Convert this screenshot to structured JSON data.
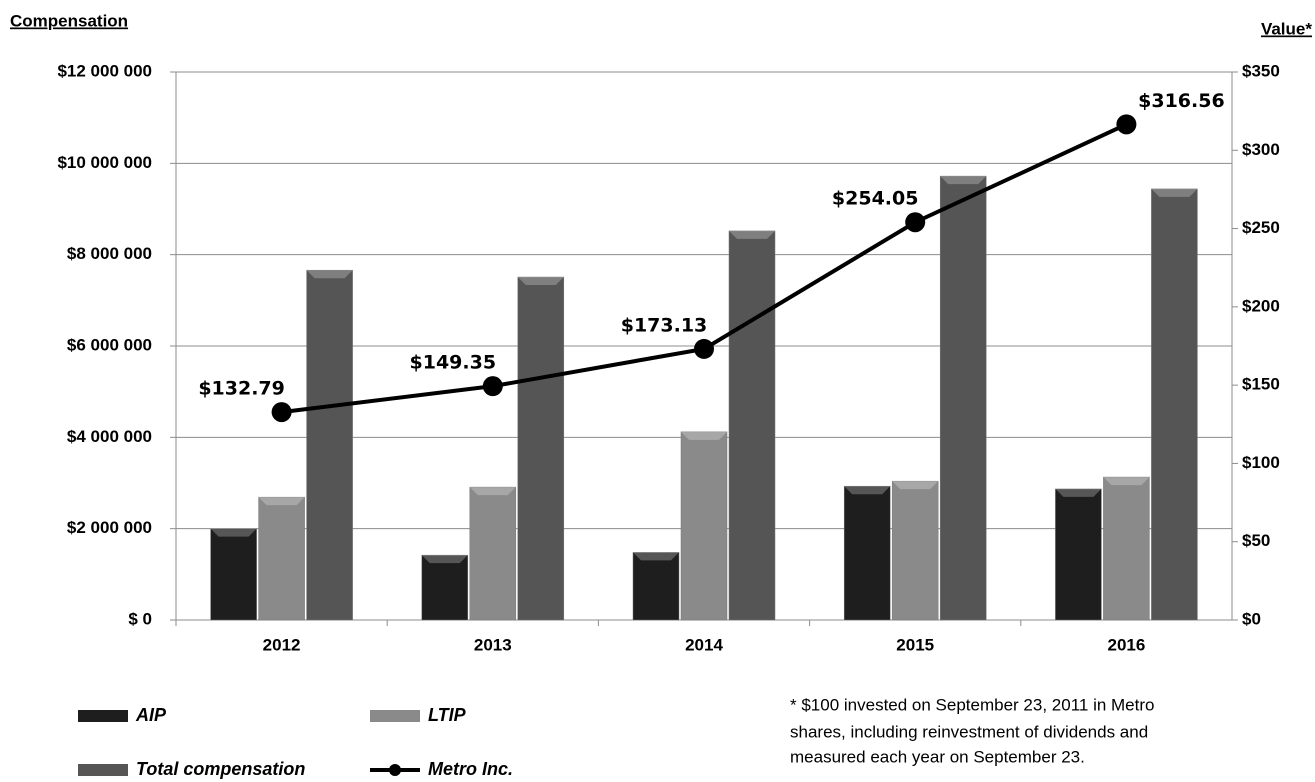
{
  "chart_data": {
    "type": "bar",
    "y_axis_title": "Compensation",
    "y2_axis_title": "Value*",
    "categories": [
      "2012",
      "2013",
      "2014",
      "2015",
      "2016"
    ],
    "series": [
      {
        "name": "AIP",
        "color": "#1e1e1e",
        "values": [
          2000000,
          1420000,
          1480000,
          2930000,
          2870000
        ]
      },
      {
        "name": "LTIP",
        "color": "#8a8a8a",
        "values": [
          2690000,
          2910000,
          4120000,
          3040000,
          3130000
        ]
      },
      {
        "name": "Total compensation",
        "color": "#555555",
        "values": [
          7660000,
          7510000,
          8520000,
          9720000,
          9440000
        ]
      },
      {
        "name": "Metro Inc.",
        "type": "line",
        "axis": "y2",
        "color": "#000000",
        "values": [
          132.79,
          149.35,
          173.13,
          254.05,
          316.56
        ],
        "value_labels": [
          "$132.79",
          "$149.35",
          "$173.13",
          "$254.05",
          "$316.56"
        ]
      }
    ],
    "ylim": [
      0,
      12000000
    ],
    "yticks": [
      {
        "value": 0,
        "label": "$ 0"
      },
      {
        "value": 2000000,
        "label": "$2 000 000"
      },
      {
        "value": 4000000,
        "label": "$4 000 000"
      },
      {
        "value": 6000000,
        "label": "$6 000 000"
      },
      {
        "value": 8000000,
        "label": "$8 000 000"
      },
      {
        "value": 10000000,
        "label": "$10 000 000"
      },
      {
        "value": 12000000,
        "label": "$12 000 000"
      }
    ],
    "y2lim": [
      0,
      350
    ],
    "y2ticks": [
      {
        "value": 0,
        "label": "$0"
      },
      {
        "value": 50,
        "label": "$50"
      },
      {
        "value": 100,
        "label": "$100"
      },
      {
        "value": 150,
        "label": "$150"
      },
      {
        "value": 200,
        "label": "$200"
      },
      {
        "value": 250,
        "label": "$250"
      },
      {
        "value": 300,
        "label": "$300"
      },
      {
        "value": 350,
        "label": "$350"
      }
    ],
    "grid": true,
    "footnote": [
      "* $100 invested on September 23, 2011 in Metro",
      "shares, including reinvestment of dividends and",
      "measured each year on September 23."
    ]
  }
}
